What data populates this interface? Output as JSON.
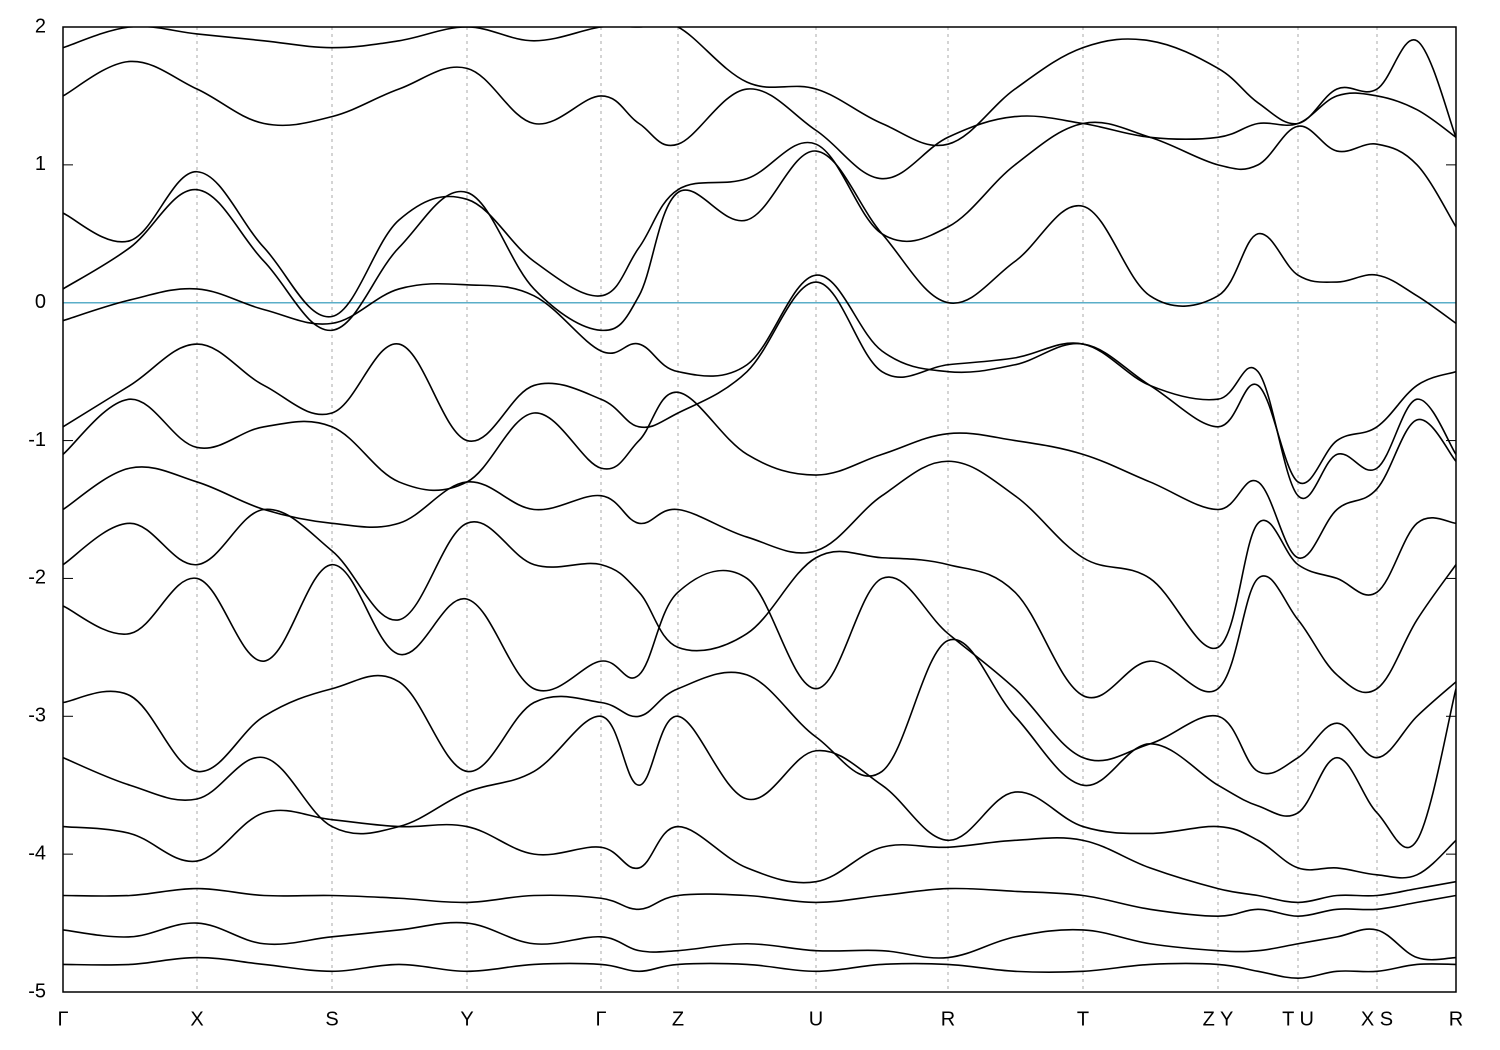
{
  "chart_data": {
    "type": "line",
    "x": [
      0,
      67,
      134,
      201,
      269,
      336,
      404,
      471,
      538,
      576,
      615,
      684,
      753,
      819,
      885,
      952,
      1020,
      1087,
      1155,
      1195,
      1235,
      1274,
      1314,
      1354,
      1393
    ],
    "xlim": [
      0,
      1393
    ],
    "xticks": [
      {
        "value": 0,
        "label": "Γ"
      },
      {
        "value": 134,
        "label": "X"
      },
      {
        "value": 269,
        "label": "S"
      },
      {
        "value": 404,
        "label": "Y"
      },
      {
        "value": 538,
        "label": "Γ"
      },
      {
        "value": 615,
        "label": "Z"
      },
      {
        "value": 753,
        "label": "U"
      },
      {
        "value": 885,
        "label": "R"
      },
      {
        "value": 1020,
        "label": "T"
      },
      {
        "value": 1155,
        "label": "Z Y"
      },
      {
        "value": 1235,
        "label": "T U"
      },
      {
        "value": 1314,
        "label": "X S"
      },
      {
        "value": 1393,
        "label": "R"
      }
    ],
    "ylim": [
      -5,
      2
    ],
    "yticks": [
      -5,
      -4,
      -3,
      -2,
      -1,
      0,
      1,
      2
    ],
    "grid": true,
    "line_color": "#000000",
    "fermi_level": 0,
    "fermi_color": "#5aaec8",
    "series": [
      {
        "color": "#000000",
        "values": [
          -0.13,
          0.02,
          0.1,
          -0.05,
          -0.15,
          0.1,
          0.13,
          0.05,
          -0.35,
          -0.3,
          -0.5,
          -0.45,
          0.2,
          -0.35,
          -0.5,
          -0.45,
          -0.3,
          -0.6,
          -0.9,
          -0.6,
          -1.3,
          -1.0,
          -0.9,
          -0.6,
          -0.5
        ]
      },
      {
        "color": "#000000",
        "values": [
          0.1,
          0.4,
          0.82,
          0.3,
          -0.2,
          0.4,
          0.8,
          0.1,
          -0.2,
          0.05,
          0.8,
          0.6,
          1.1,
          0.5,
          0.0,
          0.3,
          0.7,
          0.05,
          0.05,
          0.5,
          0.2,
          0.15,
          0.2,
          0.05,
          -0.15
        ]
      },
      {
        "color": "#000000",
        "values": [
          0.65,
          0.45,
          0.95,
          0.4,
          -0.1,
          0.6,
          0.75,
          0.3,
          0.05,
          0.4,
          0.82,
          0.9,
          1.15,
          0.5,
          0.55,
          1.0,
          1.3,
          1.2,
          1.0,
          1.0,
          1.28,
          1.1,
          1.15,
          1.0,
          0.55
        ]
      },
      {
        "color": "#000000",
        "values": [
          1.5,
          1.75,
          1.55,
          1.3,
          1.35,
          1.55,
          1.7,
          1.3,
          1.5,
          1.3,
          1.15,
          1.55,
          1.25,
          0.9,
          1.2,
          1.35,
          1.3,
          1.2,
          1.2,
          1.3,
          1.3,
          1.5,
          1.5,
          1.4,
          1.2
        ]
      },
      {
        "color": "#000000",
        "values": [
          -0.9,
          -0.6,
          -0.3,
          -0.6,
          -0.8,
          -0.3,
          -1.0,
          -0.6,
          -0.7,
          -0.9,
          -0.8,
          -0.5,
          0.15,
          -0.5,
          -0.45,
          -0.4,
          -0.3,
          -0.6,
          -0.7,
          -0.5,
          -1.4,
          -1.1,
          -1.2,
          -0.7,
          -1.1
        ]
      },
      {
        "color": "#000000",
        "values": [
          -1.1,
          -0.7,
          -1.05,
          -0.9,
          -0.9,
          -1.3,
          -1.3,
          -0.8,
          -1.2,
          -1.0,
          -0.65,
          -1.1,
          -1.25,
          -1.1,
          -0.95,
          -1.0,
          -1.1,
          -1.3,
          -1.5,
          -1.3,
          -1.85,
          -1.5,
          -1.35,
          -0.85,
          -1.15
        ]
      },
      {
        "color": "#000000",
        "values": [
          -1.5,
          -1.2,
          -1.3,
          -1.5,
          -1.6,
          -1.6,
          -1.3,
          -1.5,
          -1.4,
          -1.6,
          -1.5,
          -1.7,
          -1.8,
          -1.4,
          -1.15,
          -1.4,
          -1.85,
          -2.0,
          -2.5,
          -1.6,
          -1.9,
          -2.0,
          -2.1,
          -1.6,
          -1.6
        ]
      },
      {
        "color": "#000000",
        "values": [
          -1.9,
          -1.6,
          -1.9,
          -1.5,
          -1.8,
          -2.3,
          -1.6,
          -1.9,
          -1.9,
          -2.1,
          -2.5,
          -2.4,
          -1.85,
          -1.85,
          -1.9,
          -2.1,
          -2.85,
          -2.6,
          -2.8,
          -2.0,
          -2.3,
          -2.7,
          -2.8,
          -2.3,
          -1.9
        ]
      },
      {
        "color": "#000000",
        "values": [
          -2.2,
          -2.4,
          -2.0,
          -2.6,
          -1.9,
          -2.55,
          -2.15,
          -2.8,
          -2.6,
          -2.7,
          -2.1,
          -2.0,
          -2.8,
          -2.0,
          -2.4,
          -2.8,
          -3.3,
          -3.2,
          -3.0,
          -3.4,
          -3.3,
          -3.05,
          -3.3,
          -3.0,
          -2.75
        ]
      },
      {
        "color": "#000000",
        "values": [
          -2.9,
          -2.85,
          -3.4,
          -3.0,
          -2.8,
          -2.75,
          -3.4,
          -2.9,
          -2.9,
          -3.0,
          -2.8,
          -2.7,
          -3.15,
          -3.4,
          -2.45,
          -3.0,
          -3.5,
          -3.2,
          -3.5,
          -3.65,
          -3.7,
          -3.3,
          -3.7,
          -3.9,
          -2.8
        ]
      },
      {
        "color": "#000000",
        "values": [
          -3.3,
          -3.5,
          -3.6,
          -3.3,
          -3.8,
          -3.8,
          -3.55,
          -3.4,
          -3.0,
          -3.5,
          -3.0,
          -3.6,
          -3.25,
          -3.5,
          -3.9,
          -3.55,
          -3.8,
          -3.85,
          -3.8,
          -3.9,
          -4.1,
          -4.1,
          -4.15,
          -4.15,
          -3.9
        ]
      },
      {
        "color": "#000000",
        "values": [
          -3.8,
          -3.85,
          -4.05,
          -3.7,
          -3.75,
          -3.8,
          -3.8,
          -4.0,
          -3.95,
          -4.1,
          -3.8,
          -4.1,
          -4.2,
          -3.95,
          -3.95,
          -3.9,
          -3.9,
          -4.1,
          -4.25,
          -4.3,
          -4.35,
          -4.3,
          -4.3,
          -4.25,
          -4.2
        ]
      },
      {
        "color": "#000000",
        "values": [
          -4.3,
          -4.3,
          -4.25,
          -4.3,
          -4.3,
          -4.32,
          -4.35,
          -4.3,
          -4.32,
          -4.4,
          -4.3,
          -4.3,
          -4.35,
          -4.3,
          -4.25,
          -4.27,
          -4.3,
          -4.4,
          -4.45,
          -4.4,
          -4.45,
          -4.4,
          -4.4,
          -4.35,
          -4.3
        ]
      },
      {
        "color": "#000000",
        "values": [
          -4.55,
          -4.6,
          -4.5,
          -4.65,
          -4.6,
          -4.55,
          -4.5,
          -4.65,
          -4.6,
          -4.7,
          -4.7,
          -4.65,
          -4.7,
          -4.7,
          -4.75,
          -4.6,
          -4.55,
          -4.65,
          -4.7,
          -4.7,
          -4.65,
          -4.6,
          -4.55,
          -4.75,
          -4.75
        ]
      },
      {
        "color": "#000000",
        "values": [
          -4.8,
          -4.8,
          -4.75,
          -4.8,
          -4.85,
          -4.8,
          -4.85,
          -4.8,
          -4.8,
          -4.85,
          -4.8,
          -4.8,
          -4.85,
          -4.8,
          -4.8,
          -4.85,
          -4.85,
          -4.8,
          -4.8,
          -4.85,
          -4.9,
          -4.85,
          -4.85,
          -4.8,
          -4.8
        ]
      },
      {
        "color": "#000000",
        "values": [
          1.85,
          2.0,
          1.95,
          1.9,
          1.85,
          1.9,
          2.0,
          1.9,
          2.0,
          2.0,
          2.0,
          1.6,
          1.55,
          1.3,
          1.15,
          1.55,
          1.85,
          1.9,
          1.7,
          1.45,
          1.3,
          1.55,
          1.55,
          1.9,
          1.2
        ]
      }
    ]
  }
}
